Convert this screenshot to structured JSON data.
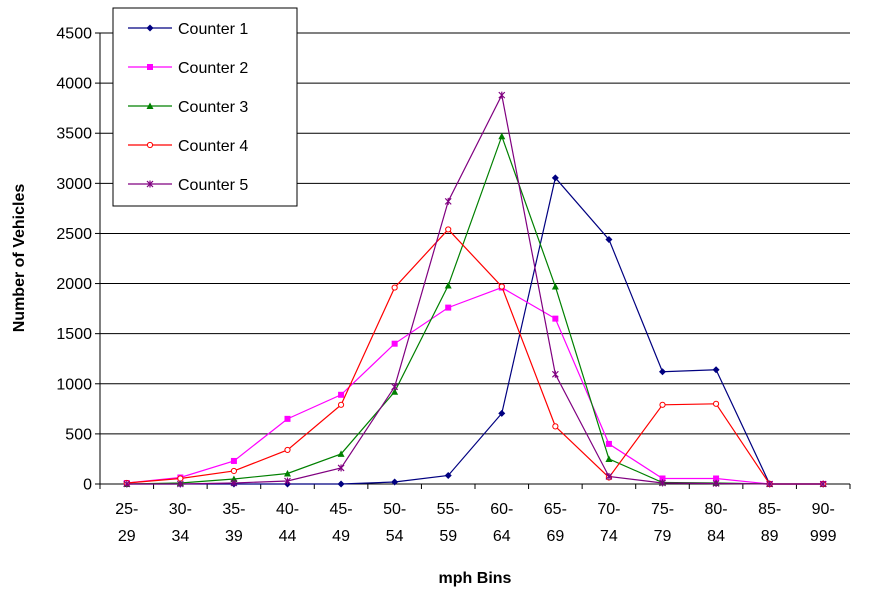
{
  "chart_data": {
    "type": "line",
    "title": "",
    "xlabel": "mph Bins",
    "ylabel": "Number of Vehicles",
    "ylim": [
      0,
      4500
    ],
    "yticks": [
      0,
      500,
      1000,
      1500,
      2000,
      2500,
      3000,
      3500,
      4000,
      4500
    ],
    "grid": "horizontal",
    "legend_position": "top-left",
    "categories": [
      [
        "25-",
        "29"
      ],
      [
        "30-",
        "34"
      ],
      [
        "35-",
        "39"
      ],
      [
        "40-",
        "44"
      ],
      [
        "45-",
        "49"
      ],
      [
        "50-",
        "54"
      ],
      [
        "55-",
        "59"
      ],
      [
        "60-",
        "64"
      ],
      [
        "65-",
        "69"
      ],
      [
        "70-",
        "74"
      ],
      [
        "75-",
        "79"
      ],
      [
        "80-",
        "84"
      ],
      [
        "85-",
        "89"
      ],
      [
        "90-",
        "999"
      ]
    ],
    "series": [
      {
        "name": "Counter 1",
        "color": "#000080",
        "marker": "diamond",
        "values": [
          0,
          0,
          0,
          0,
          0,
          20,
          85,
          705,
          3055,
          2440,
          1120,
          1140,
          0,
          0
        ]
      },
      {
        "name": "Counter 2",
        "color": "#ff00ff",
        "marker": "square",
        "values": [
          10,
          65,
          230,
          650,
          890,
          1400,
          1760,
          1960,
          1650,
          400,
          55,
          55,
          0,
          0
        ]
      },
      {
        "name": "Counter 3",
        "color": "#008000",
        "marker": "triangle",
        "values": [
          0,
          10,
          50,
          105,
          300,
          920,
          1980,
          3470,
          1970,
          250,
          15,
          10,
          0,
          0
        ]
      },
      {
        "name": "Counter 4",
        "color": "#ff0000",
        "marker": "circle",
        "values": [
          10,
          55,
          130,
          340,
          790,
          1960,
          2540,
          1970,
          575,
          65,
          790,
          800,
          0,
          0
        ]
      },
      {
        "name": "Counter 5",
        "color": "#800080",
        "marker": "star",
        "values": [
          0,
          0,
          10,
          30,
          160,
          970,
          2820,
          3880,
          1095,
          75,
          10,
          5,
          0,
          0
        ]
      }
    ]
  }
}
